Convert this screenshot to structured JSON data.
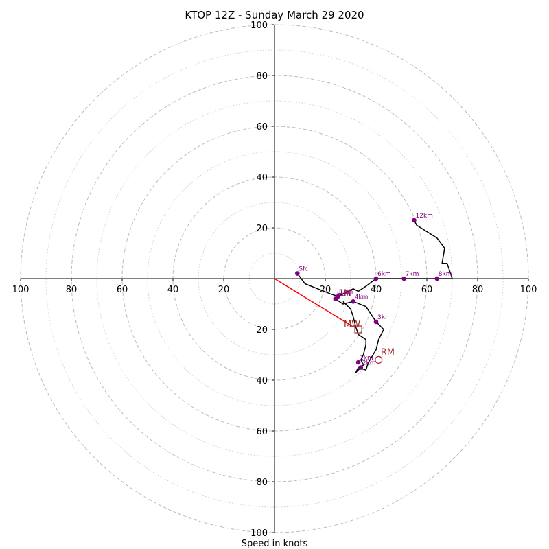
{
  "chart_data": {
    "type": "hodograph",
    "title": "KTOP 12Z - Sunday March 29 2020",
    "xlabel": "Speed in knots",
    "axis_range": [
      -100,
      100
    ],
    "ring_major": [
      20,
      40,
      60,
      80,
      100
    ],
    "ring_minor": [
      10,
      30,
      50,
      70,
      90
    ],
    "ticks": {
      "left": [
        "100",
        "80",
        "60",
        "40",
        "20"
      ],
      "right": [
        "20",
        "40",
        "60",
        "80",
        "100"
      ],
      "top": [
        "20",
        "40",
        "60",
        "80",
        "100"
      ],
      "bottom": [
        "20",
        "40",
        "60",
        "80",
        "100"
      ]
    },
    "tick_values": [
      20,
      40,
      60,
      80,
      100
    ],
    "profile": [
      [
        9,
        2
      ],
      [
        12,
        -2
      ],
      [
        22,
        -6
      ],
      [
        25,
        -7
      ],
      [
        31,
        -4
      ],
      [
        33,
        -5
      ],
      [
        36,
        -3
      ],
      [
        40,
        0
      ],
      [
        46,
        0
      ],
      [
        51,
        0
      ],
      [
        57,
        0
      ],
      [
        64,
        0
      ],
      [
        70,
        0
      ],
      [
        68,
        6
      ],
      [
        66,
        6
      ],
      [
        67,
        12
      ],
      [
        64,
        16
      ],
      [
        56,
        21
      ],
      [
        55,
        23
      ]
    ],
    "low_level_branch": [
      [
        24,
        -8
      ],
      [
        27,
        -10
      ],
      [
        31,
        -9
      ],
      [
        36,
        -11
      ],
      [
        40,
        -17
      ],
      [
        43,
        -20
      ],
      [
        41,
        -24
      ],
      [
        40,
        -28
      ],
      [
        37,
        -33
      ],
      [
        36,
        -36
      ],
      [
        33,
        -35
      ],
      [
        32,
        -37
      ],
      [
        35,
        -34
      ],
      [
        34,
        -32
      ],
      [
        35,
        -30
      ],
      [
        36,
        -26
      ],
      [
        36,
        -24
      ],
      [
        33,
        -22
      ],
      [
        32,
        -19
      ],
      [
        31,
        -15
      ],
      [
        30,
        -12
      ],
      [
        27,
        -9
      ]
    ],
    "height_markers": [
      {
        "label": "Sfc",
        "u": 9,
        "v": 2
      },
      {
        "label": "1km",
        "u": 25,
        "v": -7
      },
      {
        "label": "5km",
        "u": 24,
        "v": -8
      },
      {
        "label": "4km",
        "u": 31,
        "v": -9
      },
      {
        "label": "3km",
        "u": 40,
        "v": -17
      },
      {
        "label": "1km",
        "u": 33,
        "v": -33
      },
      {
        "label": "2km",
        "u": 34,
        "v": -35
      },
      {
        "label": "6km",
        "u": 40,
        "v": 0
      },
      {
        "label": "7km",
        "u": 51,
        "v": 0
      },
      {
        "label": "8km",
        "u": 64,
        "v": 0
      },
      {
        "label": "12km",
        "u": 55,
        "v": 23
      }
    ],
    "mean_wind": {
      "label": "MW",
      "u": 33,
      "v": -20
    },
    "right_mover": {
      "label": "RM",
      "u": 41,
      "v": -32
    },
    "left_mover": {
      "label": "LM",
      "u": 25,
      "v": -8
    },
    "shear_vector": {
      "from": [
        0,
        0
      ],
      "to": [
        31,
        -19
      ]
    },
    "colors": {
      "profile": "#000000",
      "markers": "#800080",
      "storm_motion": "#a52a2a",
      "shear_vector": "#ff0000",
      "grid": "#bbbbbb"
    }
  }
}
